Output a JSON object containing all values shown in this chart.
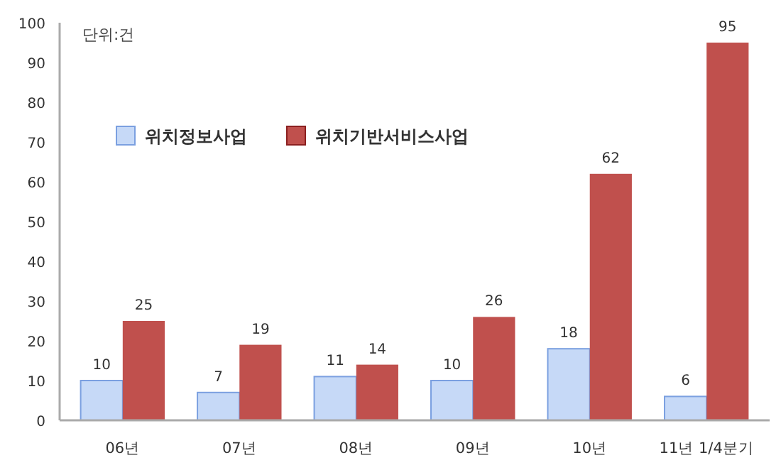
{
  "chart_data": {
    "type": "bar",
    "categories": [
      "06년",
      "07년",
      "08년",
      "09년",
      "10년",
      "11년 1/4분기"
    ],
    "series": [
      {
        "name": "위치정보사업",
        "color": "#c6d9f7",
        "values": [
          10,
          7,
          11,
          10,
          18,
          6
        ]
      },
      {
        "name": "위치기반서비스사업",
        "color": "#c0504d",
        "values": [
          25,
          19,
          14,
          26,
          62,
          95
        ]
      }
    ],
    "ylim": [
      0,
      100
    ],
    "yticks": [
      0,
      10,
      20,
      30,
      40,
      50,
      60,
      70,
      80,
      90,
      100
    ],
    "data_labels": true,
    "legend": "top left",
    "grid": false,
    "annotations": [
      "단위:건"
    ]
  }
}
